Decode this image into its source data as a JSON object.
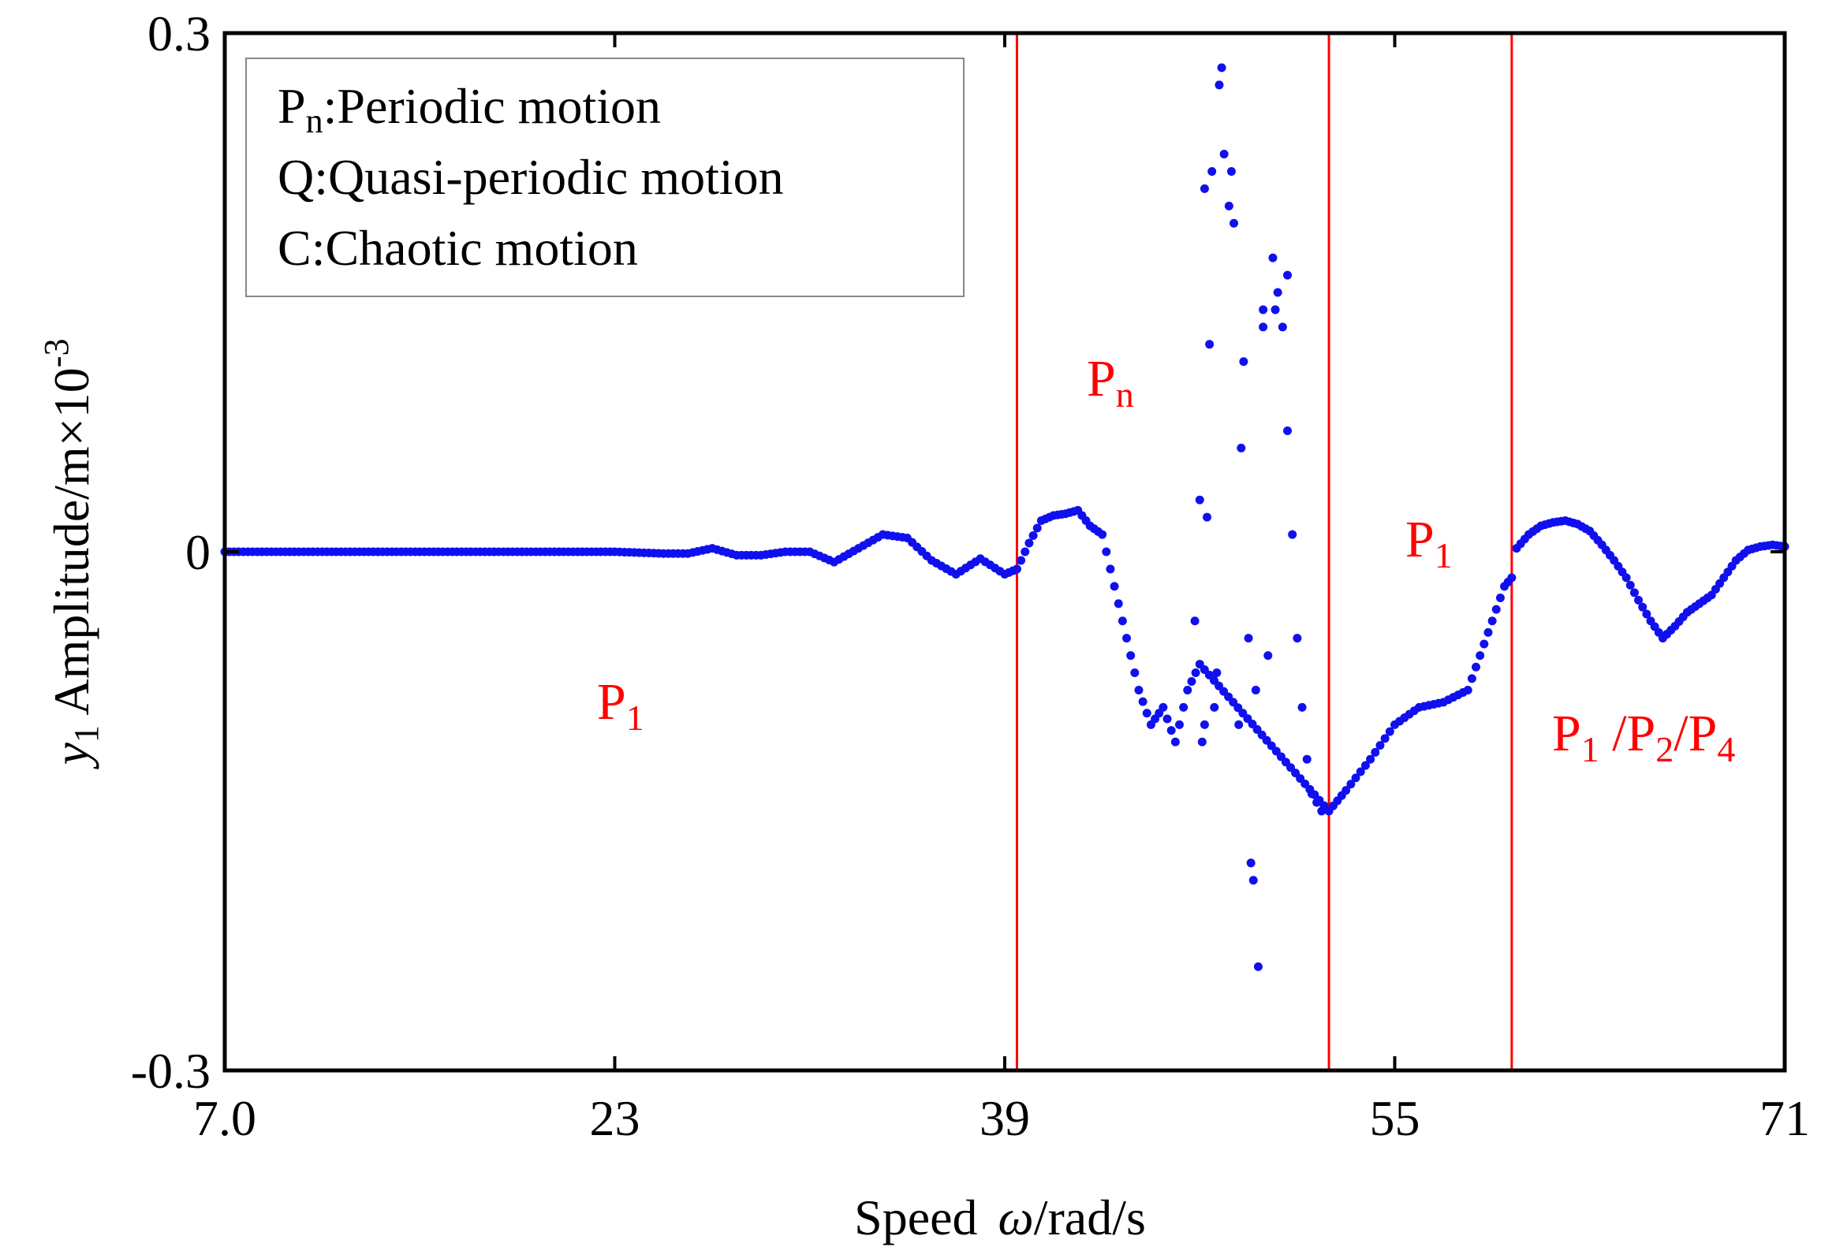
{
  "chart_data": {
    "type": "scatter",
    "title": "",
    "xlabel": {
      "prefix": "Speed",
      "symbol": "ω",
      "suffix": "/rad/s"
    },
    "ylabel": {
      "symbol": "y",
      "sub": "1",
      "text": " Amplitude/m×10",
      "sup": "-3"
    },
    "xlim": [
      7,
      71
    ],
    "ylim": [
      -0.3,
      0.3
    ],
    "xticks": [
      7,
      23,
      39,
      55,
      71
    ],
    "xtick_labels": [
      "7.0",
      "23",
      "39",
      "55",
      "71"
    ],
    "yticks": [
      -0.3,
      0,
      0.3
    ],
    "ytick_labels": [
      "-0.3",
      "0",
      "0.3"
    ],
    "grid": false,
    "boundaries": [
      39.5,
      52.3,
      59.8
    ],
    "boundary_color": "#ff0000",
    "point_color": "#1010ee",
    "legend": {
      "placement": "top-left",
      "entries": [
        {
          "main": "P",
          "sub": "n",
          "text": ":Periodic motion"
        },
        {
          "main": "Q",
          "sub": "",
          "text": ":Quasi-periodic motion"
        },
        {
          "main": "C",
          "sub": "",
          "text": ":Chaotic motion"
        }
      ]
    },
    "regions": [
      {
        "main": "P",
        "sub": "1",
        "rest": "",
        "x": 22.0,
        "y": -0.09
      },
      {
        "main": "P",
        "sub": "n",
        "rest": "",
        "x": 42.0,
        "y": 0.09
      },
      {
        "main": "P",
        "sub": "1",
        "rest": "",
        "x": 56.2,
        "y": 0.0
      },
      {
        "main": "P",
        "sub": "1",
        "rest": "/P2/P4",
        "x": 65.6,
        "y": -0.11
      }
    ],
    "series": [
      {
        "name": "curve",
        "x": [
          7,
          11,
          15,
          19,
          23,
          25,
          26,
          27,
          28,
          29,
          30,
          31,
          32,
          33,
          34,
          35,
          36,
          37,
          38,
          39,
          39.5,
          40,
          40.5,
          41,
          41.5,
          42,
          42.5,
          43,
          43.5,
          44,
          44.5,
          45,
          45.5,
          46,
          46.5,
          47,
          52.3,
          53,
          54,
          55,
          56,
          57,
          58,
          58.5,
          59,
          59.5,
          59.8,
          60,
          60.5,
          61,
          61.5,
          62,
          62.5,
          63,
          63.5,
          64,
          64.5,
          65,
          65.5,
          66,
          66.5,
          67,
          67.5,
          68,
          68.5,
          69,
          69.5,
          70,
          70.5,
          71
        ],
        "y": [
          0,
          0,
          0,
          0,
          0,
          -0.001,
          -0.001,
          0.002,
          -0.002,
          -0.002,
          0,
          0,
          -0.006,
          0.002,
          0.01,
          0.008,
          -0.005,
          -0.013,
          -0.004,
          -0.013,
          -0.01,
          0.005,
          0.018,
          0.021,
          0.022,
          0.024,
          0.015,
          0.01,
          -0.02,
          -0.05,
          -0.08,
          -0.1,
          -0.09,
          -0.11,
          -0.08,
          -0.065,
          -0.15,
          -0.138,
          -0.12,
          -0.1,
          -0.09,
          -0.087,
          -0.08,
          -0.06,
          -0.04,
          -0.02,
          -0.015,
          0.002,
          0.01,
          0.015,
          0.017,
          0.018,
          0.016,
          0.012,
          0.004,
          -0.005,
          -0.015,
          -0.028,
          -0.04,
          -0.05,
          -0.043,
          -0.035,
          -0.03,
          -0.025,
          -0.015,
          -0.005,
          0.001,
          0.003,
          0.004,
          0.003
        ]
      },
      {
        "name": "scattered points",
        "x": [
          46.8,
          47.0,
          47.1,
          47.2,
          47.3,
          47.4,
          47.5,
          47.6,
          47.8,
          48.0,
          48.2,
          48.4,
          48.6,
          48.8,
          49.0,
          49.2,
          49.4,
          49.6,
          49.8,
          50.0,
          50.2,
          50.4,
          50.6,
          50.8,
          51.0,
          51.2,
          51.4,
          51.6,
          51.8,
          52.0,
          47.9,
          48.3,
          49.1,
          50.1,
          49.3,
          49.6,
          48.7,
          50.6,
          47.2,
          47.7
        ],
        "y": [
          -0.04,
          0.03,
          -0.11,
          0.21,
          0.02,
          0.12,
          0.22,
          -0.09,
          0.27,
          0.23,
          0.2,
          0.19,
          -0.1,
          0.11,
          -0.05,
          -0.19,
          -0.24,
          0.13,
          -0.06,
          0.17,
          0.15,
          0.13,
          0.07,
          0.01,
          -0.05,
          -0.09,
          -0.12,
          -0.14,
          -0.145,
          -0.15,
          0.28,
          0.22,
          -0.18,
          0.14,
          -0.08,
          0.14,
          0.06,
          0.16,
          -0.1,
          -0.07
        ]
      }
    ]
  }
}
